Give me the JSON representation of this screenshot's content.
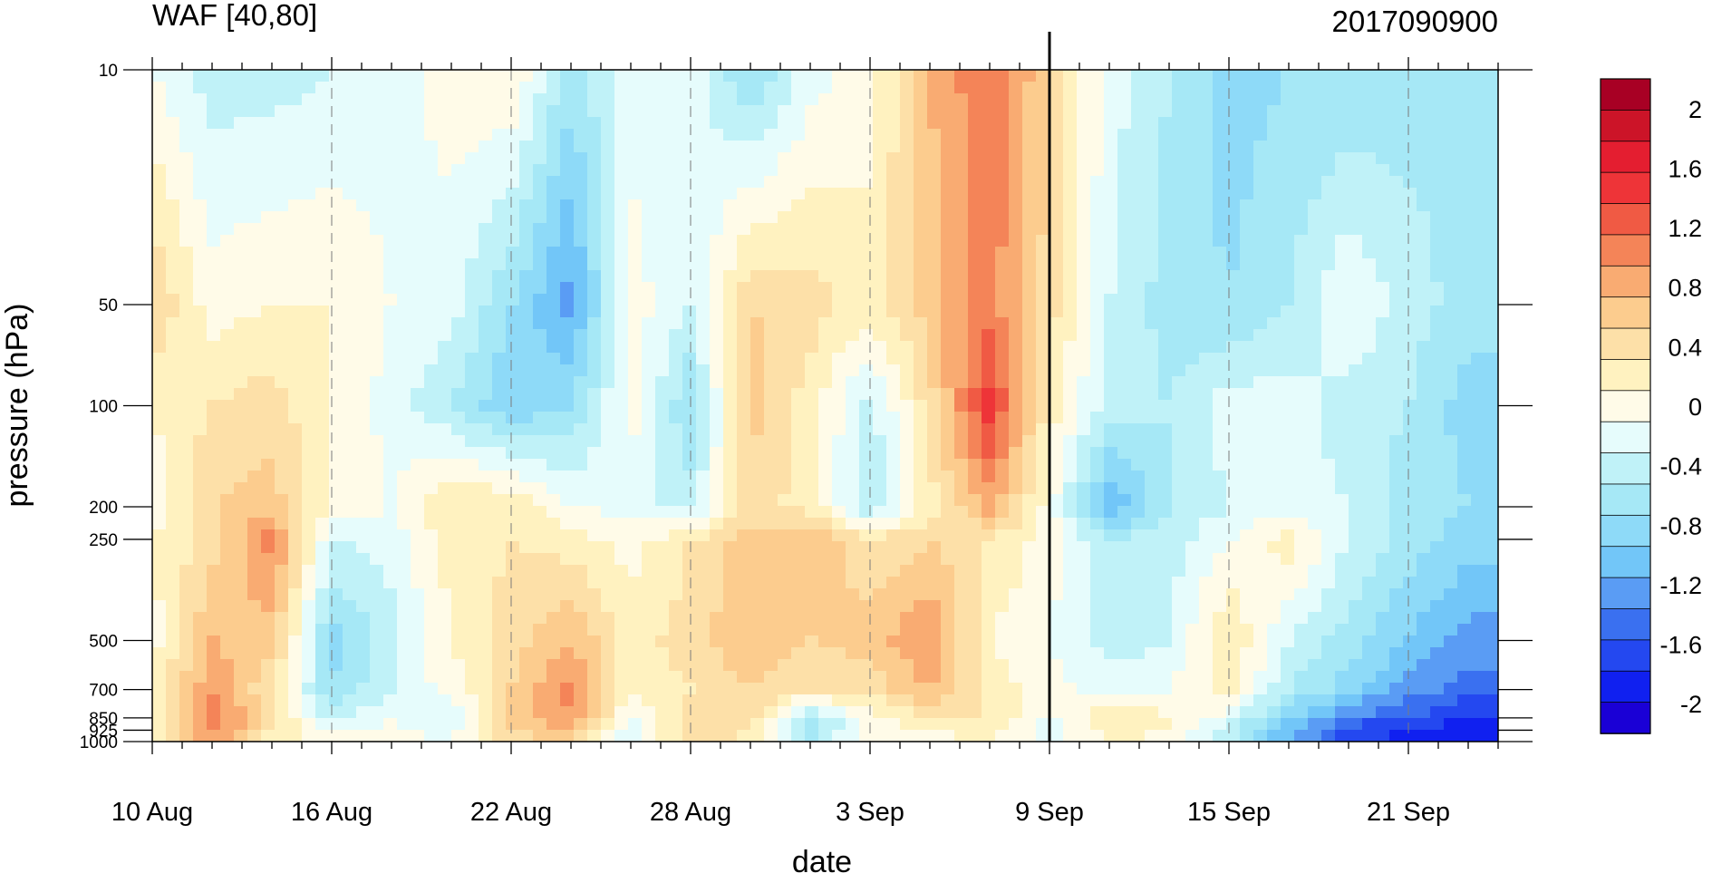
{
  "chart_data": {
    "type": "heatmap",
    "title_left": "WAF [40,80]",
    "title_right": "2017090900",
    "xlabel": "date",
    "ylabel": "pressure (hPa)",
    "x_ticks": [
      "10 Aug",
      "16 Aug",
      "22 Aug",
      "28 Aug",
      "3 Sep",
      "9 Sep",
      "15 Sep",
      "21 Sep"
    ],
    "x_range_days": [
      0,
      45
    ],
    "y_ticks": [
      10,
      50,
      100,
      200,
      250,
      500,
      700,
      850,
      925,
      1000
    ],
    "y_scale": "log",
    "y_reversed": true,
    "marked_date": "9 Sep",
    "colorbar": {
      "levels": [
        -2.2,
        -2.0,
        -1.8,
        -1.6,
        -1.4,
        -1.2,
        -1.0,
        -0.8,
        -0.6,
        -0.4,
        -0.2,
        0.0,
        0.2,
        0.4,
        0.6,
        0.8,
        1.0,
        1.2,
        1.4,
        1.6,
        1.8,
        2.0,
        2.2
      ],
      "labels": [
        "2",
        "1.6",
        "1.2",
        "0.8",
        "0.4",
        "0",
        "-0.4",
        "-0.8",
        "-1.2",
        "-1.6",
        "-2"
      ],
      "label_values": [
        2.0,
        1.6,
        1.2,
        0.8,
        0.4,
        0.0,
        -0.4,
        -0.8,
        -1.2,
        -1.6,
        -2.0
      ],
      "colors": [
        "#1a00d6",
        "#1020f0",
        "#2448f0",
        "#3a70f0",
        "#5a9cf4",
        "#72c6f8",
        "#8edaf8",
        "#a6e8f6",
        "#c0f2f8",
        "#e6fcfc",
        "#fffbe8",
        "#fff2c0",
        "#fde0a8",
        "#fccc8e",
        "#f9ab72",
        "#f48458",
        "#f05a44",
        "#ee3438",
        "#e41e30",
        "#cc1428",
        "#a80024"
      ]
    },
    "grid_dates": [
      "10 Aug",
      "12 Aug",
      "14 Aug",
      "16 Aug",
      "18 Aug",
      "20 Aug",
      "22 Aug",
      "24 Aug",
      "26 Aug",
      "28 Aug",
      "30 Aug",
      "1 Sep",
      "3 Sep",
      "5 Sep",
      "7 Sep",
      "9 Sep",
      "11 Sep",
      "13 Sep",
      "15 Sep",
      "17 Sep",
      "19 Sep",
      "21 Sep",
      "23 Sep"
    ],
    "grid_pressures": [
      10,
      50,
      100,
      200,
      250,
      500,
      700,
      850,
      925,
      1000
    ],
    "values": [
      [
        -0.2,
        -0.5,
        -0.5,
        -0.4,
        -0.3,
        -0.1,
        0.0,
        -0.7,
        -0.3,
        -0.3,
        -0.8,
        -0.3,
        -0.1,
        0.6,
        1.0,
        0.4,
        -0.3,
        -0.6,
        -0.9,
        -0.8,
        -0.8,
        -0.7,
        -0.6
      ],
      [
        0.4,
        -0.1,
        0.0,
        0.0,
        -0.2,
        -0.3,
        -0.8,
        -1.3,
        -0.1,
        -0.4,
        0.4,
        0.3,
        0.1,
        0.5,
        0.9,
        0.3,
        -0.4,
        -0.7,
        -0.8,
        -0.6,
        -0.2,
        -0.5,
        -0.7
      ],
      [
        0.0,
        0.2,
        0.3,
        0.0,
        -0.3,
        -0.6,
        -1.0,
        -0.8,
        -0.1,
        -0.8,
        0.5,
        0.1,
        -0.5,
        0.3,
        1.3,
        0.1,
        -0.5,
        -0.6,
        -0.3,
        -0.3,
        -0.5,
        -0.6,
        -0.9
      ],
      [
        -0.1,
        0.4,
        0.5,
        0.0,
        -0.2,
        0.2,
        0.2,
        -0.2,
        -0.3,
        -0.5,
        0.3,
        0.1,
        -0.6,
        0.1,
        0.7,
        -0.1,
        -1.2,
        -0.6,
        -0.4,
        -0.3,
        -0.4,
        -0.7,
        -0.8
      ],
      [
        0.0,
        0.3,
        0.9,
        -0.4,
        -0.3,
        0.1,
        0.2,
        0.1,
        -0.1,
        0.2,
        0.5,
        0.6,
        0.2,
        0.4,
        0.2,
        -0.1,
        -0.6,
        -0.5,
        -0.2,
        0.1,
        -0.4,
        -0.7,
        -0.9
      ],
      [
        -0.1,
        0.6,
        0.5,
        -0.9,
        -0.5,
        0.0,
        0.3,
        0.6,
        0.1,
        0.3,
        0.6,
        0.4,
        0.5,
        0.8,
        0.0,
        -0.2,
        -0.5,
        -0.4,
        0.2,
        -0.4,
        -0.7,
        -1.0,
        -1.3
      ],
      [
        0.0,
        0.8,
        0.2,
        -0.8,
        -0.4,
        -0.1,
        0.4,
        0.9,
        0.0,
        0.2,
        0.4,
        0.2,
        0.3,
        0.6,
        0.1,
        -0.1,
        -0.3,
        -0.2,
        0.1,
        -0.6,
        -0.9,
        -1.3,
        -1.5
      ],
      [
        0.1,
        1.0,
        0.3,
        -0.5,
        -0.2,
        -0.5,
        0.5,
        0.8,
        -0.2,
        0.3,
        0.3,
        -0.6,
        -0.1,
        0.2,
        0.2,
        -0.2,
        0.2,
        0.0,
        -0.3,
        -1.0,
        -1.4,
        -1.6,
        -1.8
      ],
      [
        0.0,
        0.9,
        0.2,
        -0.2,
        -0.1,
        -0.3,
        0.4,
        0.6,
        -0.4,
        0.4,
        0.2,
        -0.9,
        -0.2,
        0.0,
        0.1,
        -0.3,
        0.1,
        0.0,
        -0.5,
        -1.2,
        -1.7,
        -1.9,
        -1.9
      ],
      [
        0.0,
        0.6,
        0.1,
        -0.1,
        -0.1,
        -0.2,
        0.3,
        0.4,
        -0.3,
        0.3,
        0.1,
        -0.5,
        0.1,
        -0.1,
        0.0,
        -0.2,
        0.0,
        -0.1,
        -0.5,
        -1.2,
        -1.6,
        -1.8,
        -1.8
      ]
    ]
  }
}
